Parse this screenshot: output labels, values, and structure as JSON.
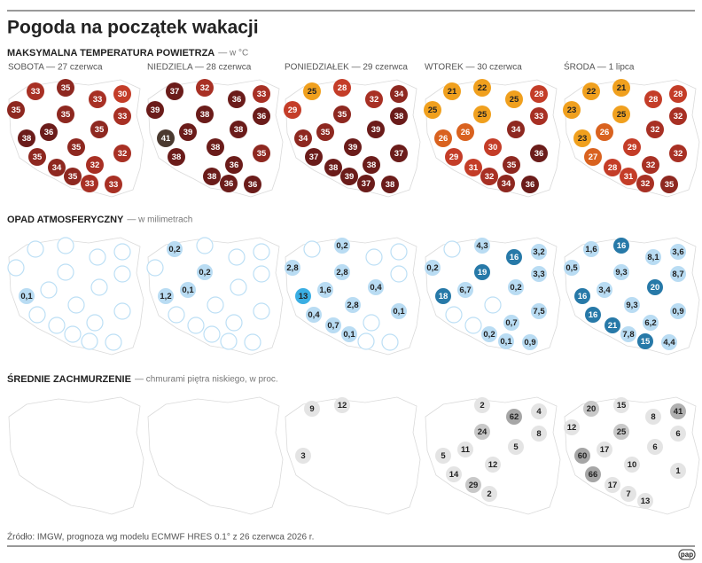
{
  "title": "Pogoda na początek wakacji",
  "days": [
    "SOBOTA — 27 czerwca",
    "NIEDZIELA — 28 czerwca",
    "PONIEDZIAŁEK — 29 czerwca",
    "WTOREK — 30 czerwca",
    "ŚRODA — 1 lipca"
  ],
  "sections": [
    {
      "title": "MAKSYMALNA TEMPERATURA POWIETRZA",
      "subtitle": "— w °C",
      "empty_marker": false,
      "maps": [
        {
          "values": [
            33,
            35,
            33,
            30,
            35,
            35,
            33,
            38,
            36,
            35,
            35,
            35,
            34,
            32,
            32,
            35,
            33,
            33
          ],
          "colors": [
            "#a83024",
            "#8e2820",
            "#a83024",
            "#c43d28",
            "#8e2820",
            "#8e2820",
            "#a83024",
            "#6b1c1a",
            "#6b1c1a",
            "#8e2820",
            "#8e2820",
            "#8e2820",
            "#8e2820",
            "#a83024",
            "#a83024",
            "#8e2820",
            "#a83024",
            "#a83024"
          ]
        },
        {
          "values": [
            37,
            32,
            36,
            33,
            39,
            38,
            36,
            41,
            39,
            38,
            38,
            38,
            null,
            36,
            35,
            38,
            36,
            36
          ],
          "colors": [
            "#6b1c1a",
            "#a83024",
            "#6b1c1a",
            "#a83024",
            "#6b1c1a",
            "#6b1c1a",
            "#6b1c1a",
            "#4b3a30",
            "#6b1c1a",
            "#6b1c1a",
            "#6b1c1a",
            "#6b1c1a",
            null,
            "#6b1c1a",
            "#8e2820",
            "#6b1c1a",
            "#6b1c1a",
            "#6b1c1a"
          ]
        },
        {
          "values": [
            25,
            28,
            32,
            34,
            29,
            35,
            38,
            34,
            35,
            39,
            39,
            37,
            38,
            38,
            37,
            39,
            37,
            38
          ],
          "colors": [
            "#f0a01e",
            "#c43d28",
            "#a83024",
            "#8e2820",
            "#c43d28",
            "#8e2820",
            "#6b1c1a",
            "#8e2820",
            "#8e2820",
            "#6b1c1a",
            "#6b1c1a",
            "#6b1c1a",
            "#6b1c1a",
            "#6b1c1a",
            "#6b1c1a",
            "#6b1c1a",
            "#6b1c1a",
            "#6b1c1a"
          ]
        },
        {
          "values": [
            21,
            22,
            25,
            28,
            25,
            25,
            33,
            26,
            26,
            34,
            30,
            29,
            31,
            35,
            36,
            32,
            34,
            36
          ],
          "colors": [
            "#f0a01e",
            "#f0a01e",
            "#f0a01e",
            "#c43d28",
            "#f0a01e",
            "#f0a01e",
            "#a83024",
            "#d9621f",
            "#d9621f",
            "#8e2820",
            "#c43d28",
            "#c43d28",
            "#c43d28",
            "#8e2820",
            "#6b1c1a",
            "#a83024",
            "#8e2820",
            "#6b1c1a"
          ]
        },
        {
          "values": [
            22,
            21,
            28,
            28,
            23,
            25,
            32,
            23,
            26,
            32,
            29,
            27,
            28,
            32,
            32,
            31,
            32,
            35
          ],
          "colors": [
            "#f0a01e",
            "#f0a01e",
            "#c43d28",
            "#c43d28",
            "#f0a01e",
            "#f0a01e",
            "#a83024",
            "#f0a01e",
            "#d9621f",
            "#a83024",
            "#c43d28",
            "#d9621f",
            "#c43d28",
            "#a83024",
            "#a83024",
            "#c43d28",
            "#a83024",
            "#8e2820"
          ]
        }
      ]
    },
    {
      "title": "OPAD ATMOSFERYCZNY",
      "subtitle": "— w milimetrach",
      "empty_marker": true,
      "maps": [
        {
          "values": [
            null,
            null,
            null,
            null,
            null,
            null,
            null,
            0.1,
            null,
            null,
            null,
            null,
            null,
            null,
            null,
            null,
            null,
            null
          ],
          "value_labels": [
            null,
            null,
            null,
            null,
            null,
            null,
            null,
            "0,1",
            null,
            null,
            null,
            null,
            null,
            null,
            null,
            null,
            null,
            null
          ],
          "colors": [
            null,
            null,
            null,
            null,
            null,
            null,
            null,
            "#b9dcf3",
            null,
            null,
            null,
            null,
            null,
            null,
            null,
            null,
            null,
            null
          ]
        },
        {
          "values": [
            0.2,
            null,
            null,
            null,
            null,
            0.2,
            null,
            1.2,
            0.1,
            null,
            null,
            null,
            null,
            null,
            null,
            null,
            null,
            null
          ],
          "value_labels": [
            "0,2",
            null,
            null,
            null,
            null,
            "0,2",
            null,
            "1,2",
            "0,1",
            null,
            null,
            null,
            null,
            null,
            null,
            null,
            null,
            null
          ],
          "colors": [
            "#b9dcf3",
            null,
            null,
            null,
            null,
            "#b9dcf3",
            null,
            "#b9dcf3",
            "#b9dcf3",
            null,
            null,
            null,
            null,
            null,
            null,
            null,
            null,
            null
          ]
        },
        {
          "values": [
            null,
            0.2,
            null,
            null,
            2.8,
            2.8,
            null,
            13,
            1.6,
            0.4,
            2.8,
            0.4,
            0.7,
            null,
            0.1,
            0.1,
            null,
            null
          ],
          "value_labels": [
            null,
            "0,2",
            null,
            null,
            "2,8",
            "2,8",
            null,
            "13",
            "1,6",
            "0,4",
            "2,8",
            "0,4",
            "0,7",
            null,
            "0,1",
            "0,1",
            null,
            null
          ],
          "colors": [
            null,
            "#b9dcf3",
            null,
            null,
            "#b9dcf3",
            "#b9dcf3",
            null,
            "#3aaee3",
            "#b9dcf3",
            "#b9dcf3",
            "#b9dcf3",
            "#b9dcf3",
            "#b9dcf3",
            null,
            "#b9dcf3",
            "#b9dcf3",
            null,
            null
          ]
        },
        {
          "values": [
            null,
            4.3,
            16,
            3.2,
            0.2,
            19,
            3.3,
            18,
            6.7,
            0.2,
            null,
            null,
            null,
            0.7,
            7.5,
            0.2,
            0.1,
            0.9
          ],
          "value_labels": [
            null,
            "4,3",
            "16",
            "3,2",
            "0,2",
            "19",
            "3,3",
            "18",
            "6,7",
            "0,2",
            null,
            null,
            null,
            "0,7",
            "7,5",
            "0,2",
            "0,1",
            "0,9"
          ],
          "colors": [
            null,
            "#b9dcf3",
            "#2779a8",
            "#b9dcf3",
            "#b9dcf3",
            "#2779a8",
            "#b9dcf3",
            "#2779a8",
            "#b9dcf3",
            "#b9dcf3",
            null,
            null,
            null,
            "#b9dcf3",
            "#b9dcf3",
            "#b9dcf3",
            "#b9dcf3",
            "#b9dcf3"
          ]
        },
        {
          "values": [
            1.6,
            16,
            8.1,
            3.6,
            0.5,
            9.3,
            8.7,
            16,
            3.4,
            20,
            9.3,
            16,
            21,
            6.2,
            0.9,
            7.8,
            15,
            4.4
          ],
          "value_labels": [
            "1,6",
            "16",
            "8,1",
            "3,6",
            "0,5",
            "9,3",
            "8,7",
            "16",
            "3,4",
            "20",
            "9,3",
            "16",
            "21",
            "6,2",
            "0,9",
            "7,8",
            "15",
            "4,4"
          ],
          "colors": [
            "#b9dcf3",
            "#2779a8",
            "#b9dcf3",
            "#b9dcf3",
            "#b9dcf3",
            "#b9dcf3",
            "#b9dcf3",
            "#2779a8",
            "#b9dcf3",
            "#2779a8",
            "#b9dcf3",
            "#2779a8",
            "#2779a8",
            "#b9dcf3",
            "#b9dcf3",
            "#b9dcf3",
            "#2779a8",
            "#b9dcf3"
          ]
        }
      ]
    },
    {
      "title": "ŚREDNIE ZACHMURZENIE",
      "subtitle": "— chmurami piętra niskiego, w proc.",
      "empty_marker": false,
      "maps": [
        {
          "values": [
            null,
            null,
            null,
            null,
            null,
            null,
            null,
            null,
            null,
            null,
            null,
            null,
            null,
            null,
            null,
            null,
            null,
            null
          ],
          "colors": [
            null,
            null,
            null,
            null,
            null,
            null,
            null,
            null,
            null,
            null,
            null,
            null,
            null,
            null,
            null,
            null,
            null,
            null
          ]
        },
        {
          "values": [
            null,
            null,
            null,
            null,
            null,
            null,
            null,
            null,
            null,
            null,
            null,
            null,
            null,
            null,
            null,
            null,
            null,
            null
          ],
          "colors": [
            null,
            null,
            null,
            null,
            null,
            null,
            null,
            null,
            null,
            null,
            null,
            null,
            null,
            null,
            null,
            null,
            null,
            null
          ]
        },
        {
          "values": [
            9,
            12,
            null,
            null,
            null,
            null,
            null,
            3,
            null,
            null,
            null,
            null,
            null,
            null,
            null,
            null,
            null,
            null
          ],
          "colors": [
            "#e4e4e4",
            "#e4e4e4",
            null,
            null,
            null,
            null,
            null,
            "#e4e4e4",
            null,
            null,
            null,
            null,
            null,
            null,
            null,
            null,
            null,
            null
          ]
        },
        {
          "values": [
            null,
            2,
            62,
            4,
            null,
            24,
            8,
            5,
            11,
            5,
            12,
            14,
            29,
            null,
            null,
            2,
            null,
            null
          ],
          "colors": [
            null,
            "#e4e4e4",
            "#a6a6a6",
            "#e4e4e4",
            null,
            "#c8c8c8",
            "#e4e4e4",
            "#e4e4e4",
            "#e4e4e4",
            "#e4e4e4",
            "#e4e4e4",
            "#e4e4e4",
            "#c8c8c8",
            null,
            null,
            "#e4e4e4",
            null,
            null
          ]
        },
        {
          "values": [
            20,
            15,
            8,
            41,
            12,
            25,
            6,
            60,
            17,
            6,
            10,
            66,
            17,
            null,
            1,
            7,
            13,
            null
          ],
          "colors": [
            "#c8c8c8",
            "#e4e4e4",
            "#e4e4e4",
            "#b0b0b0",
            "#e4e4e4",
            "#c8c8c8",
            "#e4e4e4",
            "#a6a6a6",
            "#e4e4e4",
            "#e4e4e4",
            "#e4e4e4",
            "#a6a6a6",
            "#e4e4e4",
            null,
            "#e4e4e4",
            "#e4e4e4",
            "#e4e4e4",
            null
          ]
        }
      ]
    }
  ],
  "source": "Źródło: IMGW, prognoza wg modelu ECMWF HRES 0.1° z 26 czerwca 2026 r.",
  "logo": "pap"
}
